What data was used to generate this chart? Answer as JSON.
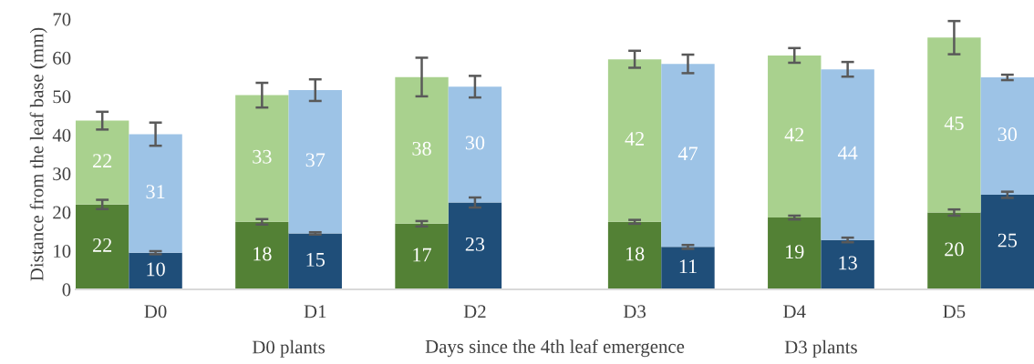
{
  "chart_data": {
    "type": "bar",
    "stacked": true,
    "ylabel": "Distance from the leaf base (mm)",
    "xlabel": "Days since the 4th leaf emergence",
    "categories": [
      null,
      "D0",
      null,
      null,
      "D1",
      null,
      null,
      "D2",
      null,
      null,
      "D3",
      null,
      null,
      "D4",
      null,
      null,
      "D5",
      null
    ],
    "series": [
      {
        "colors": [
          "#538135",
          "#1f4e79",
          null,
          "#538135",
          "#1f4e79",
          null,
          "#538135",
          "#1f4e79",
          null,
          null,
          "#538135",
          "#1f4e79",
          null,
          "#538135",
          "#1f4e79",
          null,
          "#538135",
          "#1f4e79"
        ],
        "values": [
          22,
          9.5,
          null,
          17.5,
          14.5,
          null,
          17,
          22.5,
          null,
          null,
          17.5,
          11,
          null,
          18.6,
          12.8,
          null,
          19.9,
          24.5
        ],
        "value_labels": [
          "22",
          "10",
          null,
          "18",
          "15",
          null,
          "17",
          "23",
          null,
          null,
          "18",
          "11",
          null,
          "19",
          "13",
          null,
          "20",
          "25"
        ],
        "errors": [
          1.2,
          0.4,
          null,
          0.7,
          0.3,
          null,
          0.7,
          1.3,
          null,
          null,
          0.5,
          0.5,
          null,
          0.5,
          0.6,
          null,
          0.8,
          0.8
        ]
      },
      {
        "colors": [
          "#a9d18e",
          "#9dc3e6",
          null,
          "#a9d18e",
          "#9dc3e6",
          null,
          "#a9d18e",
          "#9dc3e6",
          null,
          null,
          "#a9d18e",
          "#9dc3e6",
          null,
          "#a9d18e",
          "#9dc3e6",
          null,
          "#a9d18e",
          "#9dc3e6"
        ],
        "values": [
          21.7,
          30.7,
          null,
          32.8,
          37.1,
          null,
          38,
          30,
          null,
          null,
          42.1,
          47.4,
          null,
          42,
          44.2,
          null,
          45.3,
          30.4
        ],
        "value_labels": [
          "22",
          "31",
          null,
          "33",
          "37",
          null,
          "38",
          "30",
          null,
          null,
          "42",
          "47",
          null,
          "42",
          "44",
          null,
          "45",
          "30"
        ],
        "errors": [
          2.3,
          3,
          null,
          3.2,
          2.8,
          null,
          5,
          2.8,
          null,
          null,
          2.2,
          2.4,
          null,
          1.9,
          1.9,
          null,
          4.3,
          0.7
        ]
      }
    ],
    "ylim": [
      0,
      70
    ],
    "yticks": [
      0,
      10,
      20,
      30,
      40,
      50,
      60,
      70
    ],
    "grid": false,
    "legend": false,
    "annotations": [
      "D0 plants",
      "D3 plants"
    ]
  }
}
